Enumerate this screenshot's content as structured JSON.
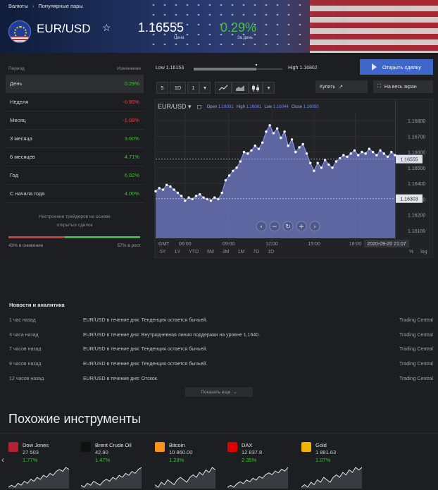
{
  "breadcrumbs": [
    "Валюты",
    "Популярные пары"
  ],
  "breadcrumb_sep": "›",
  "instrument": {
    "pair": "EUR/USD",
    "favorite_icon": "☆",
    "price": "1.16555",
    "price_label": "Цена",
    "change": "0.29%",
    "change_label": "За день"
  },
  "performance": {
    "header_period": "Период",
    "header_change": "Изменение",
    "rows": [
      {
        "period": "День",
        "change": "0.29%",
        "dir": "pos",
        "selected": true
      },
      {
        "period": "Неделя",
        "change": "-0.90%",
        "dir": "neg",
        "selected": false
      },
      {
        "period": "Месяц",
        "change": "-1.09%",
        "dir": "neg",
        "selected": false
      },
      {
        "period": "3 месяца",
        "change": "3.60%",
        "dir": "pos",
        "selected": false
      },
      {
        "period": "6 месяцев",
        "change": "4.71%",
        "dir": "pos",
        "selected": false
      },
      {
        "period": "Год",
        "change": "6.02%",
        "dir": "pos",
        "selected": false
      },
      {
        "period": "С начала года",
        "change": "4.00%",
        "dir": "pos",
        "selected": false
      }
    ],
    "sentiment_text_1": "Настроение трейдеров на основе",
    "sentiment_text_2": "открытых сделок",
    "sentiment_short_pct": 43,
    "sentiment_short_label": "43% в снижение",
    "sentiment_long_label": "57% в рост",
    "sentiment_short_color": "#d33b3b",
    "sentiment_long_color": "#3fbf3a"
  },
  "day_range": {
    "low_label": "Low",
    "low": "1.16153",
    "high_label": "High",
    "high": "1.16802",
    "current_fraction": 0.71
  },
  "actions": {
    "open_trade": "Открыть сделку",
    "buy": "Купить",
    "buy_icon": "↗",
    "fullscreen": "На весь экран",
    "fullscreen_icon": "⛶"
  },
  "toolbar": {
    "interval_num": "5",
    "interval_unit": "1D",
    "count": "1",
    "dropdown_icon": "▾",
    "chart_types": [
      "line-chart-icon",
      "area-chart-icon",
      "candles-icon"
    ]
  },
  "chart": {
    "symbol": "EUR/USD",
    "symbol_arrow": "▾",
    "ohlc_labels": [
      "Open",
      "High",
      "Low",
      "Close"
    ],
    "ohlc_values": [
      "1.16031",
      "1.16081",
      "1.16044",
      "1.16050"
    ],
    "tz_label": "GMT",
    "date_tag": "2020-09-20 21:07",
    "nav_icons": [
      "‹",
      "−",
      "↻",
      "+",
      "›"
    ],
    "periods": [
      "5Y",
      "1Y",
      "YTD",
      "6M",
      "3M",
      "1M",
      "7D",
      "1D"
    ],
    "scale_options": [
      "%",
      "log"
    ],
    "area_color": "#6570b3",
    "line_color": "#ffffff"
  },
  "chart_data": {
    "type": "area",
    "title": "EUR/USD",
    "x_ticks": [
      "06:00",
      "09:00",
      "12:00",
      "15:00",
      "18:00"
    ],
    "y_ticks": [
      1.161,
      1.162,
      1.163,
      1.164,
      1.165,
      1.166,
      1.167,
      1.168
    ],
    "ylim": [
      1.1605,
      1.1685
    ],
    "current_price": 1.16555,
    "current_label": "1.16555",
    "low_line": 1.16303,
    "low_line_label": "1.16303",
    "series": [
      {
        "values": [
          1.1635,
          1.1637,
          1.1636,
          1.1639,
          1.1638,
          1.1636,
          1.1634,
          1.1632,
          1.1629,
          1.1631,
          1.163,
          1.1632,
          1.1633,
          1.1631,
          1.163,
          1.1629,
          1.1631,
          1.163,
          1.1634,
          1.1642,
          1.1645,
          1.1648,
          1.165,
          1.1654,
          1.166,
          1.1659,
          1.1661,
          1.1664,
          1.1662,
          1.1666,
          1.1673,
          1.1677,
          1.1672,
          1.1675,
          1.1669,
          1.1673,
          1.1664,
          1.1668,
          1.166,
          1.1663,
          1.1665,
          1.1659,
          1.1653,
          1.1648,
          1.1653,
          1.165,
          1.1655,
          1.1652,
          1.165,
          1.1654,
          1.1656,
          1.1658,
          1.1657,
          1.1659,
          1.1661,
          1.1658,
          1.166,
          1.1659,
          1.1662,
          1.166,
          1.1658,
          1.1661,
          1.1659,
          1.1657,
          1.166,
          1.1658
        ]
      }
    ]
  },
  "news": {
    "title": "Новости и аналитика",
    "items": [
      {
        "time": "1 час назад",
        "headline": "EUR/USD в течение дня: Тенденция остается бычьей.",
        "source": "Trading Central"
      },
      {
        "time": "3 часа назад",
        "headline": "EUR/USD в течение дня: Внутридневная линия поддержки на уровне 1,1640.",
        "source": "Trading Central"
      },
      {
        "time": "7 часов назад",
        "headline": "EUR/USD в течение дня: Тенденция остается бычьей.",
        "source": "Trading Central"
      },
      {
        "time": "9 часов назад",
        "headline": "EUR/USD в течение дня: Тенденция остается бычьей.",
        "source": "Trading Central"
      },
      {
        "time": "12 часов назад",
        "headline": "EUR/USD в течение дня: Отскок.",
        "source": "Trading Central"
      }
    ],
    "show_more": "Показать еще",
    "show_more_icon": "⌄"
  },
  "similar": {
    "title": "Похожие инструменты",
    "prev_icon": "‹",
    "items": [
      {
        "name": "Dow Jones",
        "value": "27 503",
        "change": "1.77%",
        "icon": "us-flag-icon",
        "icon_color": "#b22234",
        "spark": [
          3,
          4,
          3,
          5,
          4,
          6,
          5,
          7,
          6,
          8,
          7,
          9,
          8,
          10,
          9,
          11,
          12,
          11,
          13,
          12
        ]
      },
      {
        "name": "Brent Crude Oil",
        "value": "42.90",
        "change": "1.47%",
        "icon": "oil-drop-icon",
        "icon_color": "#111111",
        "spark": [
          4,
          3,
          5,
          4,
          6,
          5,
          4,
          6,
          7,
          6,
          8,
          7,
          9,
          8,
          10,
          9,
          11,
          10,
          12,
          13
        ]
      },
      {
        "name": "Bitcoin",
        "value": "10 860.00",
        "change": "1.28%",
        "icon": "bitcoin-icon",
        "icon_color": "#f7931a",
        "spark": [
          5,
          4,
          6,
          5,
          7,
          6,
          5,
          7,
          8,
          7,
          6,
          8,
          9,
          8,
          10,
          9,
          11,
          10,
          12,
          11
        ]
      },
      {
        "name": "DAX",
        "value": "12 837.8",
        "change": "2.35%",
        "icon": "de-flag-icon",
        "icon_color": "#dd0000",
        "spark": [
          3,
          4,
          3,
          5,
          6,
          5,
          7,
          6,
          8,
          7,
          9,
          8,
          10,
          11,
          10,
          12,
          11,
          13,
          12,
          14
        ]
      },
      {
        "name": "Gold",
        "value": "1 881.63",
        "change": "1.07%",
        "icon": "gold-bars-icon",
        "icon_color": "#f0b400",
        "spark": [
          4,
          5,
          4,
          6,
          5,
          7,
          6,
          8,
          7,
          6,
          8,
          9,
          8,
          10,
          9,
          11,
          10,
          12,
          11,
          12
        ]
      }
    ]
  }
}
